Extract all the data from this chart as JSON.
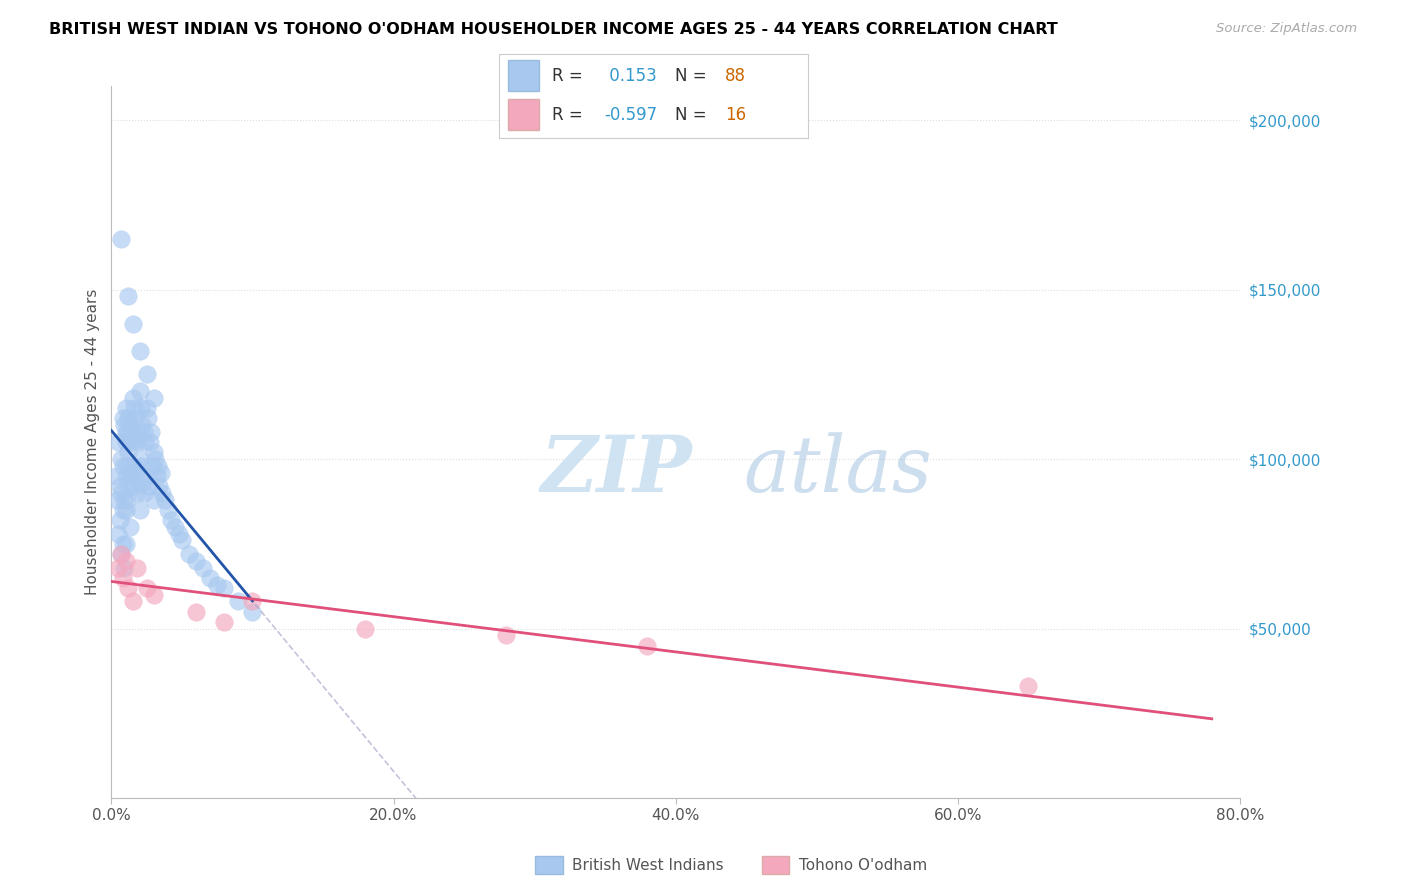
{
  "title": "BRITISH WEST INDIAN VS TOHONO O'ODHAM HOUSEHOLDER INCOME AGES 25 - 44 YEARS CORRELATION CHART",
  "source": "Source: ZipAtlas.com",
  "ylabel": "Householder Income Ages 25 - 44 years",
  "blue_label": "British West Indians",
  "pink_label": "Tohono O'odham",
  "blue_R": 0.153,
  "blue_N": 88,
  "pink_R": -0.597,
  "pink_N": 16,
  "blue_color": "#a8c8f0",
  "blue_line_color": "#2255aa",
  "blue_dash_color": "#8899cc",
  "pink_color": "#f4a8be",
  "pink_line_color": "#e0507a",
  "watermark_color": "#dceefa",
  "axis_color": "#bbbbbb",
  "text_color": "#555555",
  "right_tick_color": "#3399cc",
  "grid_color": "#dddddd",
  "xmin": 0.0,
  "xmax": 0.8,
  "ymin": 0,
  "ymax": 210000,
  "ytick_positions": [
    50000,
    100000,
    150000,
    200000
  ],
  "ytick_labels": [
    "$50,000",
    "$100,000",
    "$150,000",
    "$200,000"
  ],
  "xticks": [
    0.0,
    0.2,
    0.4,
    0.6,
    0.8
  ],
  "xtick_labels": [
    "0.0%",
    "20.0%",
    "40.0%",
    "60.0%",
    "80.0%"
  ],
  "legend_R_color": "#3399cc",
  "legend_N_color": "#cc6600",
  "dot_alpha": 0.65,
  "dot_size": 160,
  "blue_x": [
    0.003,
    0.004,
    0.005,
    0.005,
    0.006,
    0.006,
    0.007,
    0.007,
    0.007,
    0.008,
    0.008,
    0.008,
    0.009,
    0.009,
    0.01,
    0.01,
    0.01,
    0.01,
    0.01,
    0.011,
    0.011,
    0.011,
    0.012,
    0.012,
    0.012,
    0.013,
    0.013,
    0.014,
    0.014,
    0.015,
    0.015,
    0.015,
    0.016,
    0.016,
    0.017,
    0.017,
    0.018,
    0.018,
    0.019,
    0.02,
    0.02,
    0.02,
    0.021,
    0.021,
    0.022,
    0.022,
    0.023,
    0.023,
    0.024,
    0.025,
    0.025,
    0.026,
    0.026,
    0.027,
    0.028,
    0.029,
    0.03,
    0.03,
    0.031,
    0.032,
    0.033,
    0.034,
    0.035,
    0.036,
    0.038,
    0.04,
    0.042,
    0.045,
    0.048,
    0.05,
    0.055,
    0.06,
    0.065,
    0.07,
    0.075,
    0.08,
    0.09,
    0.1,
    0.007,
    0.009,
    0.012,
    0.015,
    0.02,
    0.025,
    0.03,
    0.008,
    0.01,
    0.013
  ],
  "blue_y": [
    95000,
    88000,
    105000,
    78000,
    92000,
    82000,
    165000,
    100000,
    90000,
    98000,
    85000,
    75000,
    110000,
    88000,
    115000,
    105000,
    95000,
    85000,
    75000,
    108000,
    98000,
    88000,
    112000,
    102000,
    92000,
    106000,
    96000,
    110000,
    95000,
    118000,
    105000,
    92000,
    115000,
    98000,
    112000,
    95000,
    108000,
    90000,
    105000,
    120000,
    100000,
    85000,
    115000,
    98000,
    110000,
    93000,
    108000,
    90000,
    105000,
    115000,
    95000,
    112000,
    92000,
    105000,
    108000,
    98000,
    102000,
    88000,
    100000,
    95000,
    98000,
    92000,
    96000,
    90000,
    88000,
    85000,
    82000,
    80000,
    78000,
    76000,
    72000,
    70000,
    68000,
    65000,
    63000,
    62000,
    58000,
    55000,
    72000,
    68000,
    148000,
    140000,
    132000,
    125000,
    118000,
    112000,
    108000,
    80000
  ],
  "pink_x": [
    0.005,
    0.007,
    0.008,
    0.01,
    0.012,
    0.015,
    0.018,
    0.025,
    0.03,
    0.06,
    0.08,
    0.1,
    0.18,
    0.28,
    0.38,
    0.65
  ],
  "pink_y": [
    68000,
    72000,
    65000,
    70000,
    62000,
    58000,
    68000,
    62000,
    60000,
    55000,
    52000,
    58000,
    50000,
    48000,
    45000,
    33000
  ]
}
